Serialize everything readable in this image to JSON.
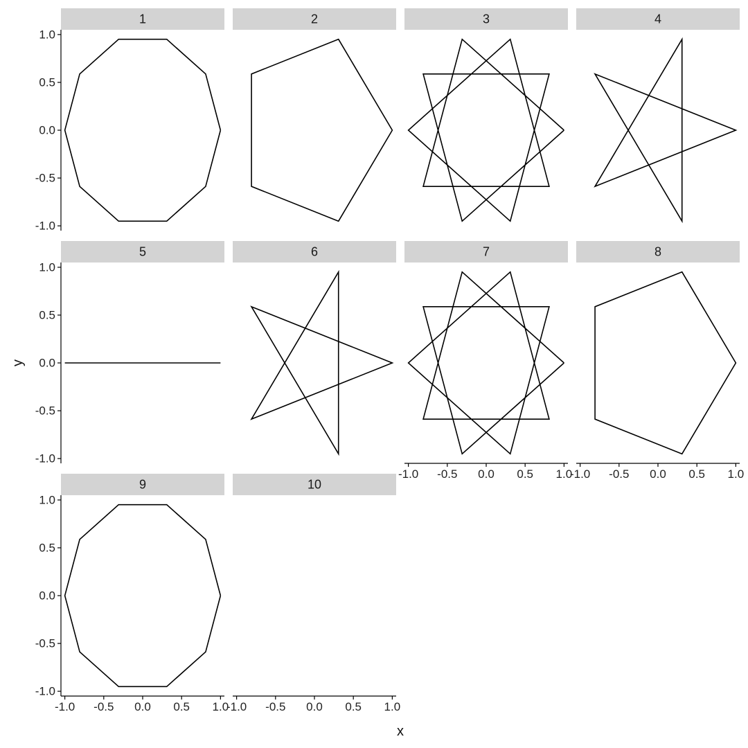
{
  "chart_data": {
    "type": "line",
    "kind": "faceted star polygons (path through points of a unit circle)",
    "xlabel": "x",
    "ylabel": "y",
    "xlim": [
      -1.05,
      1.05
    ],
    "ylim": [
      -1.05,
      1.05
    ],
    "xticks": [
      -1.0,
      -0.5,
      0.0,
      0.5,
      1.0
    ],
    "yticks": [
      -1.0,
      -0.5,
      0.0,
      0.5,
      1.0
    ],
    "xtick_labels": [
      "-1.0",
      "-0.5",
      "0.0",
      "0.5",
      "1.0"
    ],
    "ytick_labels": [
      "-1.0",
      "-0.5",
      "0.0",
      "0.5",
      "1.0"
    ],
    "n_points": 10,
    "ncol": 4,
    "grid": false,
    "facets": [
      {
        "label": "1",
        "step": 1
      },
      {
        "label": "2",
        "step": 2
      },
      {
        "label": "3",
        "step": 3
      },
      {
        "label": "4",
        "step": 4
      },
      {
        "label": "5",
        "step": 5
      },
      {
        "label": "6",
        "step": 6
      },
      {
        "label": "7",
        "step": 7
      },
      {
        "label": "8",
        "step": 8
      },
      {
        "label": "9",
        "step": 9
      },
      {
        "label": "10",
        "step": 10
      }
    ]
  }
}
